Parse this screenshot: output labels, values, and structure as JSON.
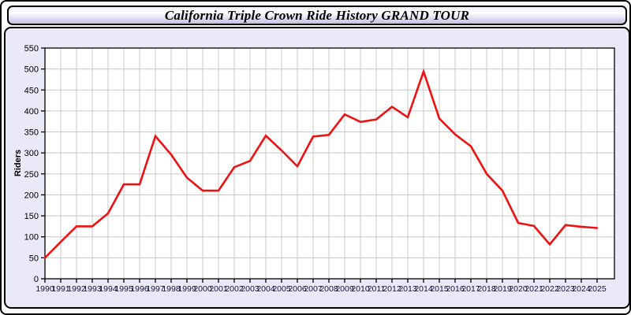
{
  "window": {
    "title": "California Triple Crown Ride History GRAND TOUR"
  },
  "chart_data": {
    "type": "line",
    "title": "California Triple Crown Ride History GRAND TOUR",
    "xlabel": "",
    "ylabel": "Riders",
    "ylim": [
      0,
      550
    ],
    "ytick_step": 50,
    "grid": true,
    "legend_position": "none",
    "x": [
      "1990",
      "1991",
      "1992",
      "1993",
      "1994",
      "1995",
      "1996",
      "1997",
      "1998",
      "1999",
      "2000",
      "2001",
      "2002",
      "2003",
      "2004",
      "2005",
      "2006",
      "2007",
      "2008",
      "2009",
      "2010",
      "2011",
      "2012",
      "2013",
      "2014",
      "2015",
      "2016",
      "2017",
      "2018",
      "2019",
      "2020",
      "2021",
      "2022",
      "2023",
      "2024",
      "2025"
    ],
    "series": [
      {
        "name": "Riders",
        "color": "#ee1111",
        "values": [
          50,
          88,
          125,
          125,
          156,
          225,
          225,
          340,
          296,
          241,
          210,
          210,
          266,
          281,
          341,
          306,
          268,
          339,
          343,
          392,
          374,
          380,
          410,
          385,
          494,
          382,
          344,
          316,
          250,
          210,
          133,
          126,
          82,
          128,
          124,
          121
        ]
      }
    ]
  },
  "colors": {
    "panel_background": "#e9e9f7",
    "plot_background": "#ffffff",
    "gridline": "#c8c8c8",
    "axis": "#000000",
    "line": "#ee1111",
    "x_tick_label": "#14143c",
    "y_tick_label": "#000000"
  }
}
